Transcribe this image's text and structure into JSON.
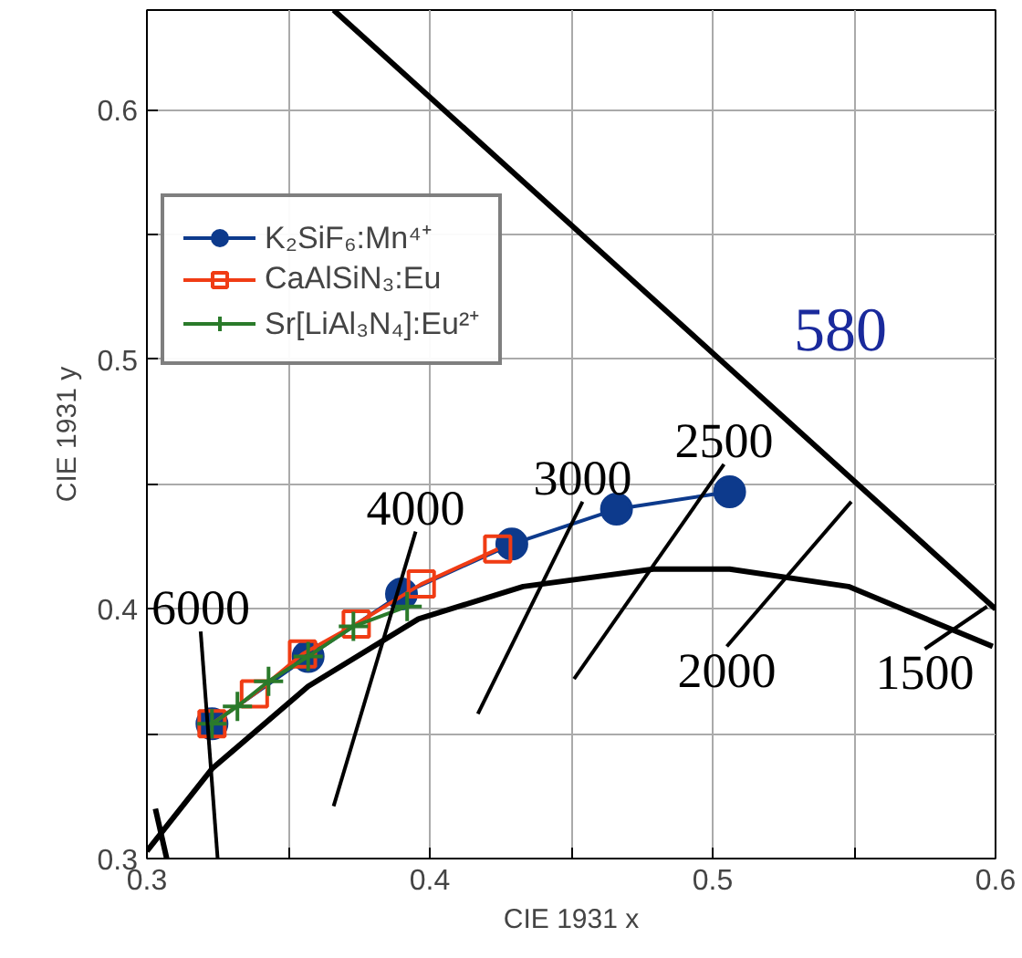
{
  "chart_data": {
    "type": "line",
    "xlabel": "CIE 1931 x",
    "ylabel": "CIE 1931 y",
    "xlim": [
      0.3,
      0.6
    ],
    "ylim": [
      0.3,
      0.64
    ],
    "xticks": [
      0.3,
      {
        "value": 0.35,
        "label": null
      },
      0.4,
      {
        "value": 0.45,
        "label": null
      },
      0.5,
      {
        "value": 0.55,
        "label": null
      },
      0.6
    ],
    "yticks": [
      0.3,
      {
        "value": 0.35,
        "label": null
      },
      0.4,
      {
        "value": 0.45,
        "label": null
      },
      0.5,
      {
        "value": 0.55,
        "label": null
      },
      0.6
    ],
    "grid": true,
    "legend": "left",
    "series": [
      {
        "name": "K₂SiF₆:Mn⁴⁺",
        "color": "#0d3a8c",
        "marker": "circle",
        "x": [
          0.323,
          0.357,
          0.39,
          0.429,
          0.466,
          0.506
        ],
        "values": [
          0.354,
          0.381,
          0.406,
          0.426,
          0.44,
          0.447
        ]
      },
      {
        "name": "CaAlSiN₃:Eu",
        "color": "#f03c14",
        "marker": "square",
        "x": [
          0.323,
          0.338,
          0.355,
          0.374,
          0.397,
          0.424
        ],
        "values": [
          0.354,
          0.366,
          0.382,
          0.394,
          0.41,
          0.424
        ]
      },
      {
        "name": "Sr[LiAl₃N₄]:Eu²⁺",
        "color": "#2a7a2a",
        "marker": "cross",
        "x": [
          0.323,
          0.332,
          0.343,
          0.357,
          0.373,
          0.392
        ],
        "values": [
          0.354,
          0.361,
          0.371,
          0.381,
          0.393,
          0.401
        ]
      },
      {
        "color": "#000000",
        "marker": "none",
        "x": [
          0.366,
          0.6
        ],
        "values": [
          0.64,
          0.4
        ]
      },
      {
        "color": "#000000",
        "marker": "none",
        "x": [
          0.3,
          0.323,
          0.357,
          0.396,
          0.433,
          0.479,
          0.506,
          0.548,
          0.599
        ],
        "values": [
          0.303,
          0.336,
          0.369,
          0.396,
          0.409,
          0.416,
          0.416,
          0.409,
          0.385
        ]
      },
      {
        "color": "#000000",
        "marker": "none",
        "x": [
          0.303,
          0.307
        ],
        "values": [
          0.32,
          0.3
        ]
      },
      {
        "name": "6000",
        "color": "#000000",
        "marker": "none",
        "x": [
          0.319,
          0.325
        ],
        "values": [
          0.391,
          0.3
        ]
      },
      {
        "name": "4000",
        "color": "#000000",
        "marker": "none",
        "x": [
          0.395,
          0.366
        ],
        "values": [
          0.431,
          0.321
        ]
      },
      {
        "name": "3000",
        "color": "#000000",
        "marker": "none",
        "x": [
          0.454,
          0.417
        ],
        "values": [
          0.443,
          0.358
        ]
      },
      {
        "name": "2500",
        "color": "#000000",
        "marker": "none",
        "x": [
          0.504,
          0.451
        ],
        "values": [
          0.458,
          0.372
        ]
      },
      {
        "name": "2000",
        "color": "#000000",
        "marker": "none",
        "x": [
          0.505,
          0.549
        ],
        "values": [
          0.385,
          0.443
        ]
      },
      {
        "name": "1500",
        "color": "#000000",
        "marker": "none",
        "x": [
          0.575,
          0.597
        ],
        "values": [
          0.384,
          0.401
        ]
      }
    ],
    "annotations": [
      "580"
    ]
  }
}
